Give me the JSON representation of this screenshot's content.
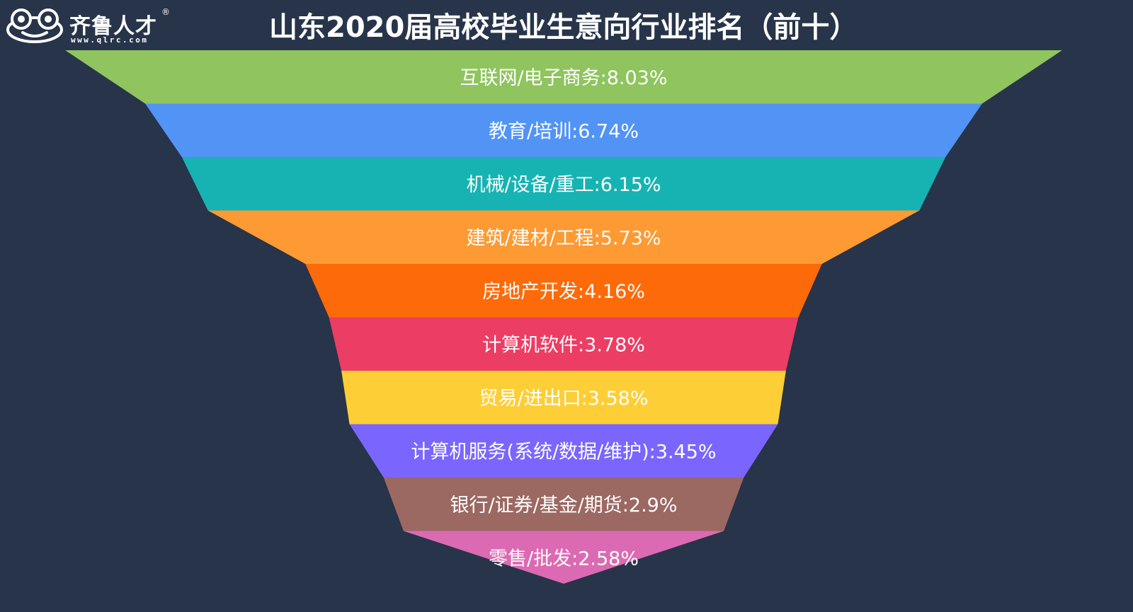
{
  "brand": {
    "name": "齐鲁人才",
    "registered": "®",
    "url": "www.qlrc.com",
    "icon": "frog-logo-icon"
  },
  "chart_data": {
    "type": "funnel",
    "title": "山东2020届高校毕业生意向行业排名（前十）",
    "unit": "%",
    "categories": [
      "互联网/电子商务",
      "教育/培训",
      "机械/设备/重工",
      "建筑/建材/工程",
      "房地产开发",
      "计算机软件",
      "贸易/进出口",
      "计算机服务(系统/数据/维护)",
      "银行/证券/基金/期货",
      "零售/批发"
    ],
    "values": [
      8.03,
      6.74,
      6.15,
      5.73,
      4.16,
      3.78,
      3.58,
      3.45,
      2.9,
      2.58
    ],
    "labels": [
      "互联网/电子商务:8.03%",
      "教育/培训:6.74%",
      "机械/设备/重工:6.15%",
      "建筑/建材/工程:5.73%",
      "房地产开发:4.16%",
      "计算机软件:3.78%",
      "贸易/进出口:3.58%",
      "计算机服务(系统/数据/维护):3.45%",
      "银行/证券/基金/期货:2.9%",
      "零售/批发:2.58%"
    ],
    "colors": [
      "#8fc45f",
      "#5294f5",
      "#17b3b3",
      "#fd9a33",
      "#fd6a09",
      "#ec3d64",
      "#fdce36",
      "#7a66fe",
      "#9b6862",
      "#dc6ab3"
    ],
    "background": "#27344a",
    "legend": "none",
    "grid": false
  }
}
